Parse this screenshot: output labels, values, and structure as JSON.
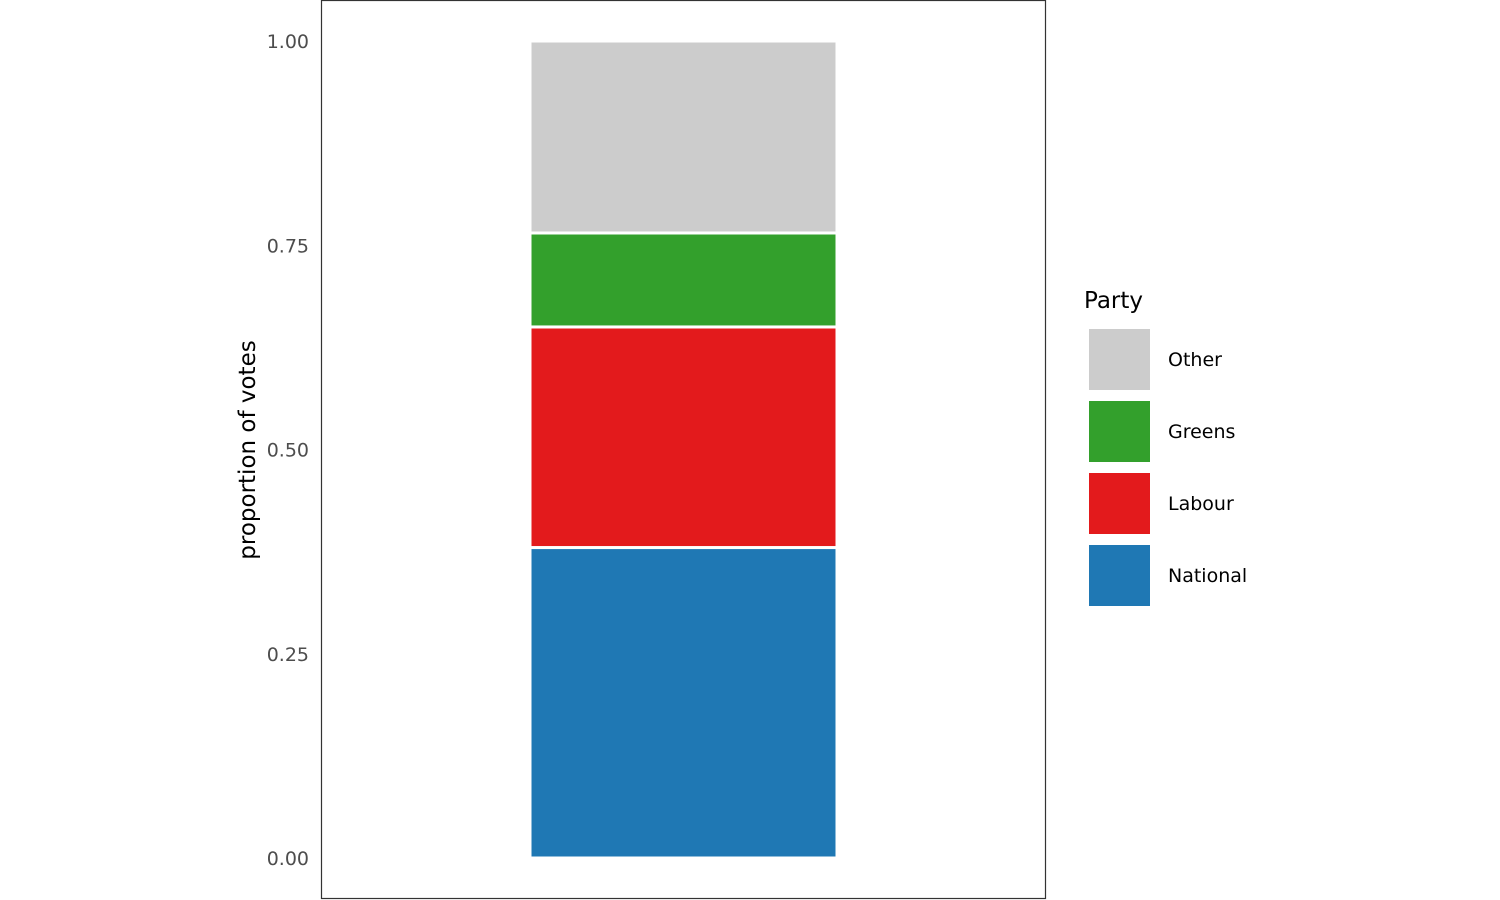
{
  "chart_data": {
    "type": "bar",
    "stacked": true,
    "categories": [
      ""
    ],
    "series": [
      {
        "name": "National",
        "values": [
          0.38
        ],
        "color": "#1f78b4"
      },
      {
        "name": "Labour",
        "values": [
          0.27
        ],
        "color": "#e31a1c"
      },
      {
        "name": "Greens",
        "values": [
          0.115
        ],
        "color": "#33a02c"
      },
      {
        "name": "Other",
        "values": [
          0.235
        ],
        "color": "#cccccc"
      }
    ],
    "title": "",
    "xlabel": "",
    "ylabel": "proportion of votes",
    "ylim": [
      0,
      1
    ],
    "yticks": [
      0,
      0.25,
      0.5,
      0.75,
      1
    ],
    "ytick_labels": [
      "0.00",
      "0.25",
      "0.50",
      "0.75",
      "1.00"
    ],
    "grid": false,
    "legend": {
      "title": "Party",
      "position": "right",
      "order": [
        "Other",
        "Greens",
        "Labour",
        "National"
      ]
    }
  }
}
